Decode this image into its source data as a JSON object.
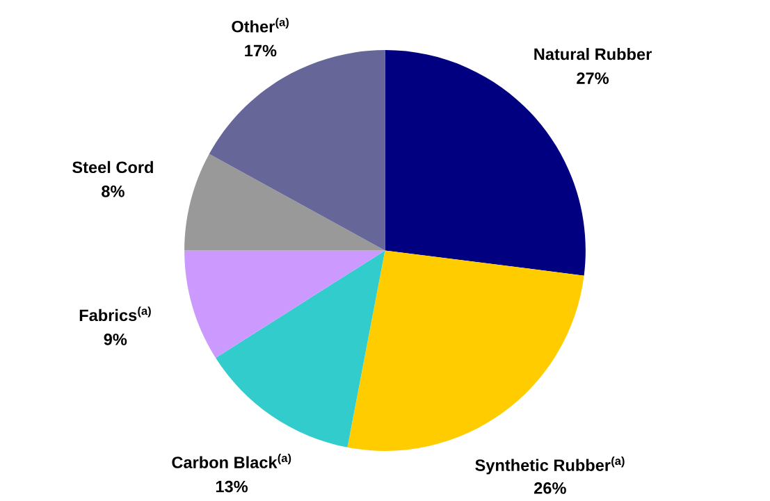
{
  "chart_data": {
    "type": "pie",
    "categories": [
      "Natural Rubber",
      "Synthetic Rubber$^{(a)}$",
      "Carbon Black$^{(a)}$",
      "Fabrics$^{(a)}$",
      "Steel Cord",
      "Other$^{(a)}$"
    ],
    "values": [
      27,
      26,
      13,
      9,
      8,
      17
    ],
    "value_labels": [
      "27%",
      "26%",
      "13%",
      "9%",
      "8%",
      "17%"
    ],
    "colors": [
      "#000080",
      "#ffcc00",
      "#33cccc",
      "#cc99ff",
      "#999999",
      "#666699"
    ],
    "legend": false
  }
}
